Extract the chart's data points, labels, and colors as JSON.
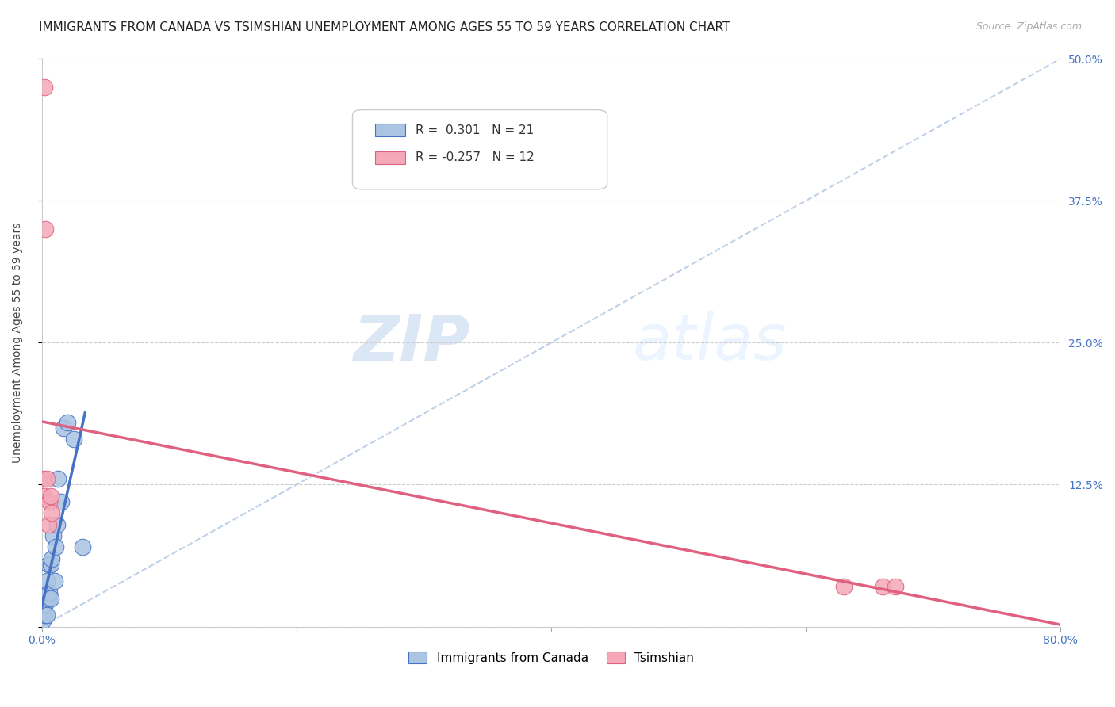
{
  "title": "IMMIGRANTS FROM CANADA VS TSIMSHIAN UNEMPLOYMENT AMONG AGES 55 TO 59 YEARS CORRELATION CHART",
  "source": "Source: ZipAtlas.com",
  "ylabel": "Unemployment Among Ages 55 to 59 years",
  "xlim": [
    0.0,
    0.8
  ],
  "ylim": [
    0.0,
    0.5
  ],
  "blue_r": "0.301",
  "blue_n": "21",
  "pink_r": "-0.257",
  "pink_n": "12",
  "blue_color": "#aac4e2",
  "pink_color": "#f4a8b8",
  "blue_line_color": "#4472c4",
  "pink_line_color": "#e06080",
  "diag_color": "#b8cce4",
  "watermark_zip": "ZIP",
  "watermark_atlas": "atlas",
  "blue_points_x": [
    0.001,
    0.002,
    0.003,
    0.004,
    0.004,
    0.005,
    0.005,
    0.006,
    0.007,
    0.007,
    0.008,
    0.009,
    0.01,
    0.011,
    0.012,
    0.013,
    0.015,
    0.017,
    0.02,
    0.025,
    0.032
  ],
  "blue_points_y": [
    0.005,
    0.01,
    0.02,
    0.01,
    0.04,
    0.025,
    0.055,
    0.03,
    0.025,
    0.055,
    0.06,
    0.08,
    0.04,
    0.07,
    0.09,
    0.13,
    0.11,
    0.175,
    0.18,
    0.165,
    0.07
  ],
  "pink_points_x": [
    0.001,
    0.002,
    0.002,
    0.003,
    0.004,
    0.005,
    0.006,
    0.007,
    0.008,
    0.63,
    0.66,
    0.67
  ],
  "pink_points_y": [
    0.13,
    0.475,
    0.115,
    0.35,
    0.13,
    0.09,
    0.11,
    0.115,
    0.1,
    0.035,
    0.035,
    0.035
  ],
  "blue_trend_x": [
    0.0,
    0.032
  ],
  "pink_trend_x": [
    0.0,
    0.8
  ],
  "title_fontsize": 11,
  "tick_fontsize": 10,
  "source_fontsize": 9
}
